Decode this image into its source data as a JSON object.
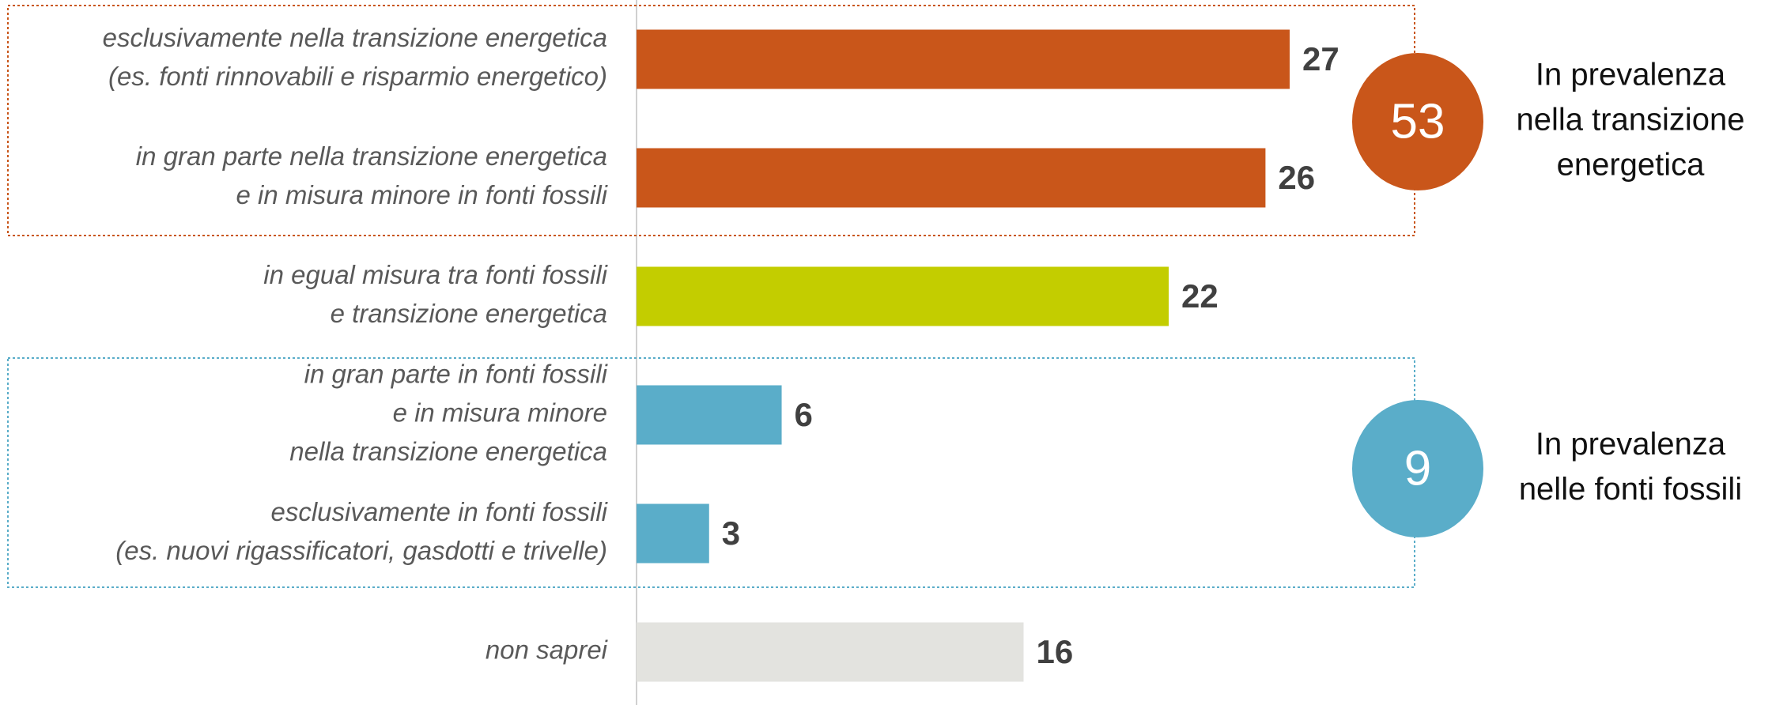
{
  "chart_data": {
    "type": "bar",
    "orientation": "horizontal",
    "categories": [
      [
        "esclusivamente nella transizione energetica",
        "(es. fonti rinnovabili e risparmio energetico)"
      ],
      [
        "in gran parte nella transizione energetica",
        "e in misura minore in fonti fossili"
      ],
      [
        "in egual misura tra fonti fossili",
        "e transizione energetica"
      ],
      [
        "in gran parte in fonti fossili",
        "e in misura minore",
        "nella transizione energetica"
      ],
      [
        "esclusivamente in fonti fossili",
        "(es. nuovi rigassificatori, gasdotti e trivelle)"
      ],
      [
        "non saprei"
      ]
    ],
    "values": [
      27,
      26,
      22,
      6,
      3,
      16
    ],
    "colors": [
      "#c9561a",
      "#c9561a",
      "#c3cd00",
      "#5aadc9",
      "#5aadc9",
      "#e3e3df"
    ],
    "groups": [
      {
        "value": 53,
        "color": "#c9561a",
        "label": [
          "In prevalenza",
          "nella transizione",
          "energetica"
        ]
      },
      {
        "value": 9,
        "color": "#5aadc9",
        "label": [
          "In prevalenza",
          "nelle fonti fossili"
        ]
      }
    ]
  }
}
